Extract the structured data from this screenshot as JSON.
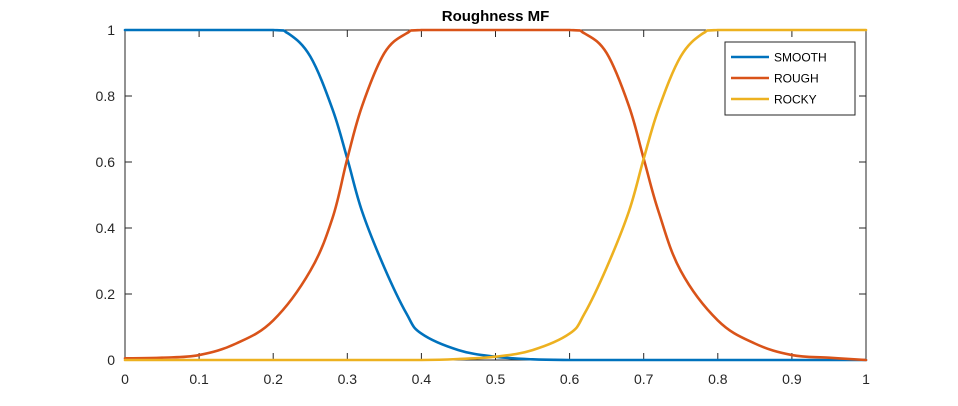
{
  "chart_data": {
    "type": "line",
    "title": "Roughness MF",
    "xlabel": "",
    "ylabel": "",
    "xlim": [
      0,
      1
    ],
    "ylim": [
      0,
      1
    ],
    "xticks": [
      "0",
      "0.1",
      "0.2",
      "0.3",
      "0.4",
      "0.5",
      "0.6",
      "0.7",
      "0.8",
      "0.9",
      "1"
    ],
    "yticks": [
      "0",
      "0.2",
      "0.4",
      "0.6",
      "0.8",
      "1"
    ],
    "grid": false,
    "legend_position": "top-right",
    "series": [
      {
        "name": "SMOOTH",
        "color": "#0072BD",
        "x": [
          0,
          0.1,
          0.2,
          0.22,
          0.25,
          0.28,
          0.3,
          0.32,
          0.35,
          0.38,
          0.4,
          0.45,
          0.5,
          0.55,
          0.6,
          0.7,
          0.8,
          0.9,
          1
        ],
        "y": [
          1,
          1,
          1,
          0.99,
          0.92,
          0.76,
          0.61,
          0.45,
          0.28,
          0.14,
          0.08,
          0.03,
          0.01,
          0.002,
          0,
          0,
          0,
          0,
          0
        ]
      },
      {
        "name": "ROUGH",
        "color": "#D95319",
        "x": [
          0,
          0.05,
          0.1,
          0.15,
          0.2,
          0.25,
          0.28,
          0.3,
          0.32,
          0.35,
          0.38,
          0.4,
          0.5,
          0.6,
          0.62,
          0.65,
          0.68,
          0.7,
          0.72,
          0.75,
          0.8,
          0.85,
          0.9,
          0.95,
          1
        ],
        "y": [
          0.005,
          0.007,
          0.015,
          0.05,
          0.12,
          0.27,
          0.43,
          0.61,
          0.77,
          0.93,
          0.99,
          1,
          1,
          1,
          0.99,
          0.93,
          0.77,
          0.61,
          0.45,
          0.27,
          0.12,
          0.05,
          0.015,
          0.007,
          0
        ]
      },
      {
        "name": "ROCKY",
        "color": "#EDB120",
        "x": [
          0,
          0.1,
          0.2,
          0.3,
          0.4,
          0.45,
          0.5,
          0.55,
          0.6,
          0.62,
          0.65,
          0.68,
          0.7,
          0.72,
          0.75,
          0.78,
          0.8,
          0.9,
          1
        ],
        "y": [
          0,
          0,
          0,
          0,
          0,
          0.003,
          0.01,
          0.03,
          0.08,
          0.14,
          0.28,
          0.45,
          0.61,
          0.76,
          0.92,
          0.99,
          1,
          1,
          1
        ]
      }
    ]
  }
}
